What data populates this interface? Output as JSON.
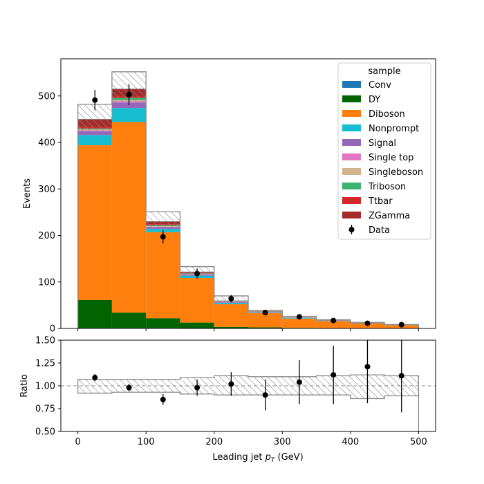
{
  "chart_data": [
    {
      "type": "bar",
      "stacked": true,
      "histogram": true,
      "bin_edges": [
        0,
        50,
        100,
        150,
        200,
        250,
        300,
        350,
        400,
        450,
        500
      ],
      "xlim": [
        -25,
        525
      ],
      "ylim": [
        0,
        580
      ],
      "ylabel": "Events",
      "xticks": [
        0,
        100,
        200,
        300,
        400,
        500
      ],
      "yticks": [
        0,
        100,
        200,
        300,
        400,
        500
      ],
      "legend": {
        "title": "sample",
        "placement": "top-right",
        "entries": [
          "Conv",
          "DY",
          "Diboson",
          "Nonprompt",
          "Signal",
          "Single top",
          "Singleboson",
          "Triboson",
          "Ttbar",
          "ZGamma",
          "Data"
        ]
      },
      "series": [
        {
          "name": "Conv",
          "color": "#1f77b4",
          "values": [
            1,
            1,
            1,
            0.5,
            0.3,
            0.2,
            0.1,
            0.1,
            0.1,
            0.1
          ]
        },
        {
          "name": "DY",
          "color": "#006400",
          "values": [
            60,
            33,
            21,
            12,
            3,
            2,
            1,
            0.5,
            0.3,
            0.2
          ]
        },
        {
          "name": "Diboson",
          "color": "#ff7f0e",
          "values": [
            333,
            410,
            185,
            96,
            49,
            31,
            20,
            15,
            10,
            6.5
          ]
        },
        {
          "name": "Nonprompt",
          "color": "#17becf",
          "values": [
            22,
            30,
            7,
            5,
            3,
            1.5,
            1,
            0.5,
            0.3,
            0.2
          ]
        },
        {
          "name": "Signal",
          "color": "#9467bd",
          "values": [
            8,
            12,
            4,
            3,
            1.5,
            0.8,
            0.5,
            0.3,
            0.2,
            0.1
          ]
        },
        {
          "name": "Single top",
          "color": "#e377c2",
          "values": [
            2,
            3,
            1,
            0.5,
            0.3,
            0.2,
            0.1,
            0.1,
            0.1,
            0.1
          ]
        },
        {
          "name": "Singleboson",
          "color": "#d2b48c",
          "values": [
            2,
            2,
            1,
            0.5,
            0.3,
            0.2,
            0.1,
            0.1,
            0.1,
            0.1
          ]
        },
        {
          "name": "Triboson",
          "color": "#3cb371",
          "values": [
            2,
            5,
            2,
            1,
            0.5,
            0.3,
            0.2,
            0.1,
            0.1,
            0.1
          ]
        },
        {
          "name": "Ttbar",
          "color": "#d62728",
          "values": [
            3,
            3,
            2,
            1,
            0.5,
            0.3,
            0.2,
            0.1,
            0.1,
            0.1
          ]
        },
        {
          "name": "ZGamma",
          "color": "#a52a2a",
          "values": [
            17,
            16,
            6,
            2,
            1,
            0.5,
            0.3,
            0.2,
            0.1,
            0.1
          ]
        }
      ],
      "uncertainty_band": {
        "up": [
          482,
          552,
          251,
          133,
          70,
          39,
          26,
          19,
          13,
          8.5
        ],
        "down": [
          425,
          485,
          215,
          113,
          58,
          33,
          21,
          16,
          10,
          6.2
        ]
      },
      "data": {
        "name": "Data",
        "color": "#000000",
        "x": [
          25,
          75,
          125,
          175,
          225,
          275,
          325,
          375,
          425,
          475
        ],
        "y": [
          491,
          503,
          197,
          118,
          64,
          34,
          25,
          17,
          11,
          8
        ],
        "yerr": [
          22,
          22.5,
          14,
          10.9,
          8,
          5.8,
          5,
          4.1,
          3.3,
          2.8
        ]
      }
    },
    {
      "type": "scatter",
      "xlabel": "Leading jet  $p_T$ (GeV)",
      "ylabel": "Ratio",
      "xlim": [
        -25,
        525
      ],
      "ylim": [
        0.5,
        1.5
      ],
      "xticks": [
        0,
        100,
        200,
        300,
        400,
        500
      ],
      "yticks": [
        "0.50",
        "0.75",
        "1.00",
        "1.25",
        "1.50"
      ],
      "reference_line": 1.0,
      "bin_edges": [
        0,
        50,
        100,
        150,
        200,
        250,
        300,
        350,
        400,
        450,
        500
      ],
      "band": {
        "up": [
          1.07,
          1.07,
          1.07,
          1.09,
          1.11,
          1.1,
          1.1,
          1.11,
          1.12,
          1.11
        ],
        "down": [
          0.92,
          0.93,
          0.93,
          0.91,
          0.9,
          0.9,
          0.9,
          0.9,
          0.86,
          0.89
        ]
      },
      "points": {
        "x": [
          25,
          75,
          125,
          175,
          225,
          275,
          325,
          375,
          425,
          475
        ],
        "y": [
          1.09,
          0.98,
          0.85,
          0.98,
          1.02,
          0.9,
          1.04,
          1.12,
          1.21,
          1.11
        ],
        "yerr": [
          0.04,
          0.04,
          0.06,
          0.09,
          0.13,
          0.17,
          0.24,
          0.32,
          0.4,
          0.4
        ]
      }
    }
  ]
}
